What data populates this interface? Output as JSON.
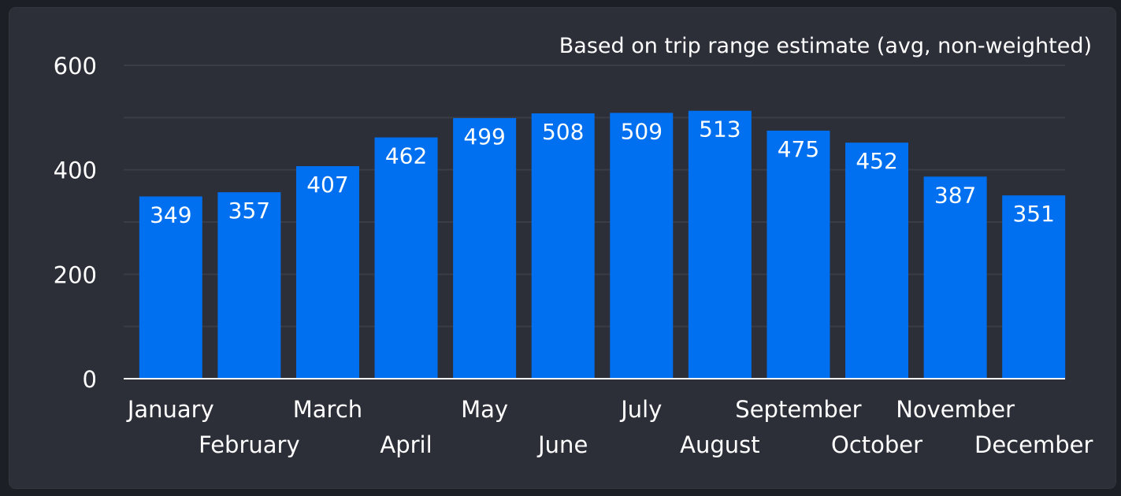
{
  "chart_data": {
    "type": "bar",
    "subtitle": "Based on trip range estimate (avg, non-weighted)",
    "categories": [
      "January",
      "February",
      "March",
      "April",
      "May",
      "June",
      "July",
      "August",
      "September",
      "October",
      "November",
      "December"
    ],
    "values": [
      349,
      357,
      407,
      462,
      499,
      508,
      509,
      513,
      475,
      452,
      387,
      351
    ],
    "ylim": [
      0,
      600
    ],
    "yticks": [
      0,
      200,
      400,
      600
    ],
    "minor_gridlines": [
      100,
      300,
      500
    ],
    "grid": true,
    "data_labels": true,
    "colors": {
      "bar": "#0070f0",
      "background": "#2c2e38",
      "grid": "#3a3c46",
      "text": "#ffffff",
      "baseline": "#ffffff"
    }
  }
}
